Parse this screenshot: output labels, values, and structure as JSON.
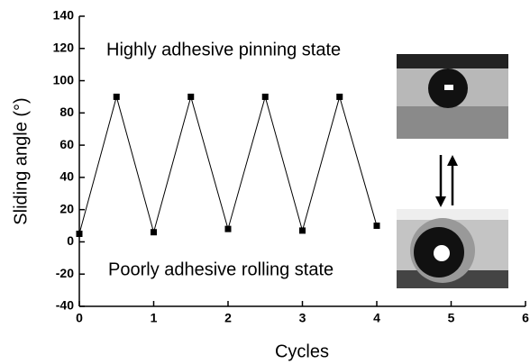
{
  "chart_data": {
    "type": "line",
    "x_label": "Cycles",
    "y_label": "Sliding angle (°)",
    "annotations": [
      "Highly adhesive pinning state",
      "Poorly adhesive rolling state"
    ],
    "x": [
      0,
      0.5,
      1,
      1.5,
      2,
      2.5,
      3,
      3.5,
      4
    ],
    "series": [
      {
        "color": "#000000",
        "values": [
          5,
          90,
          6,
          90,
          8,
          90,
          7,
          90,
          10
        ]
      }
    ],
    "xlim": [
      0,
      6
    ],
    "xticks": [
      0,
      1,
      2,
      3,
      4,
      5,
      6
    ],
    "ylim": [
      -40,
      140
    ],
    "yticks": [
      -40,
      -20,
      0,
      20,
      40,
      60,
      80,
      100,
      120,
      140
    ],
    "grid": false
  }
}
